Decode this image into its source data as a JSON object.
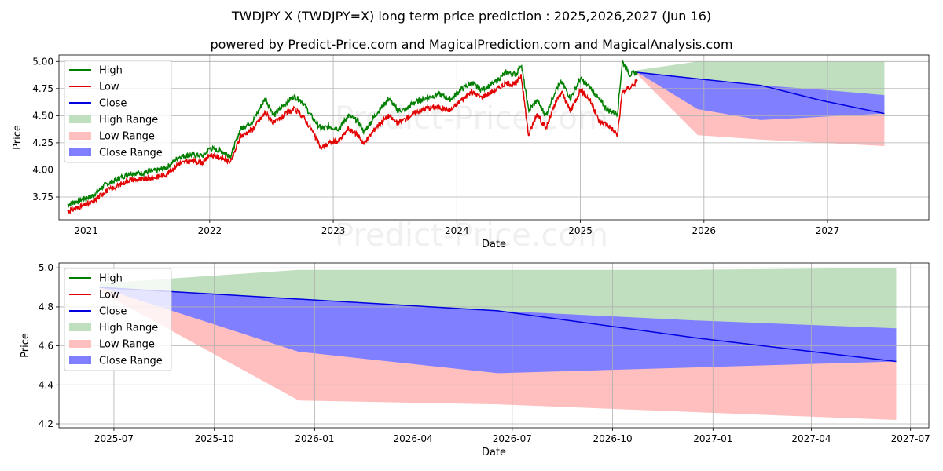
{
  "title": "TWDJPY X (TWDJPY=X) long term price prediction : 2025,2026,2027 (Jun 16)",
  "subtitle": "powered by Predict-Price.com and MagicalPrediction.com and MagicalAnalysis.com",
  "watermark": "Predict-Price.com",
  "colors": {
    "high": "#007f00",
    "low": "#e30000",
    "close": "#0000e0",
    "high_range": "#bfdfbf",
    "low_range": "#ffbfbf",
    "close_range": "#7f7fff"
  },
  "chart_data": [
    {
      "type": "line",
      "name": "long-term",
      "xlabel": "Date",
      "ylabel": "Price",
      "xlim": [
        2020.78,
        2027.82
      ],
      "ylim": [
        3.54,
        5.06
      ],
      "x_ticks": [
        2021,
        2022,
        2023,
        2024,
        2025,
        2026,
        2027
      ],
      "x_tick_labels": [
        "2021",
        "2022",
        "2023",
        "2024",
        "2025",
        "2026",
        "2027"
      ],
      "y_ticks": [
        3.75,
        4.0,
        4.25,
        4.5,
        4.75,
        5.0
      ],
      "y_tick_labels": [
        "3.75",
        "4.00",
        "4.25",
        "4.50",
        "4.75",
        "5.00"
      ],
      "legend": [
        "High",
        "Low",
        "Close",
        "High Range",
        "Low Range",
        "Close Range"
      ],
      "legend_position": "top-left",
      "grid": true,
      "history": {
        "x": [
          2020.85,
          2020.95,
          2021.05,
          2021.15,
          2021.25,
          2021.35,
          2021.45,
          2021.55,
          2021.65,
          2021.75,
          2021.85,
          2021.95,
          2022.0,
          2022.1,
          2022.17,
          2022.25,
          2022.35,
          2022.45,
          2022.52,
          2022.6,
          2022.68,
          2022.75,
          2022.82,
          2022.9,
          2022.97,
          2023.05,
          2023.12,
          2023.2,
          2023.25,
          2023.35,
          2023.45,
          2023.52,
          2023.58,
          2023.65,
          2023.75,
          2023.85,
          2023.95,
          2024.03,
          2024.12,
          2024.2,
          2024.3,
          2024.4,
          2024.48,
          2024.52,
          2024.58,
          2024.65,
          2024.72,
          2024.8,
          2024.85,
          2024.92,
          2025.0,
          2025.08,
          2025.15,
          2025.22,
          2025.3,
          2025.34,
          2025.4,
          2025.46
        ],
        "high": [
          3.68,
          3.72,
          3.76,
          3.86,
          3.91,
          3.97,
          3.97,
          3.99,
          4.02,
          4.12,
          4.14,
          4.13,
          4.2,
          4.17,
          4.13,
          4.38,
          4.45,
          4.66,
          4.5,
          4.6,
          4.68,
          4.63,
          4.5,
          4.38,
          4.4,
          4.38,
          4.5,
          4.45,
          4.35,
          4.52,
          4.66,
          4.55,
          4.55,
          4.62,
          4.66,
          4.7,
          4.65,
          4.74,
          4.8,
          4.74,
          4.8,
          4.9,
          4.88,
          4.98,
          4.55,
          4.64,
          4.5,
          4.74,
          4.81,
          4.66,
          4.84,
          4.76,
          4.65,
          4.55,
          4.52,
          5.0,
          4.88,
          4.9
        ],
        "low": [
          3.62,
          3.66,
          3.7,
          3.8,
          3.85,
          3.91,
          3.91,
          3.93,
          3.96,
          4.06,
          4.08,
          4.07,
          4.14,
          4.11,
          4.07,
          4.31,
          4.38,
          4.53,
          4.43,
          4.5,
          4.56,
          4.5,
          4.38,
          4.2,
          4.25,
          4.27,
          4.38,
          4.32,
          4.24,
          4.4,
          4.5,
          4.43,
          4.47,
          4.52,
          4.57,
          4.58,
          4.55,
          4.64,
          4.72,
          4.67,
          4.73,
          4.8,
          4.79,
          4.88,
          4.32,
          4.52,
          4.38,
          4.62,
          4.72,
          4.54,
          4.74,
          4.64,
          4.45,
          4.42,
          4.32,
          4.72,
          4.76,
          4.82
        ]
      },
      "forecast": {
        "x": [
          2025.46,
          2025.95,
          2026.46,
          2026.95,
          2027.46
        ],
        "close": [
          4.9,
          4.84,
          4.78,
          4.64,
          4.52
        ],
        "high_range_upper": [
          4.92,
          5.0,
          5.0,
          5.0,
          5.0
        ],
        "low_range_lower": [
          4.88,
          4.32,
          4.28,
          4.25,
          4.22
        ],
        "close_range_upper": [
          4.9,
          4.84,
          4.78,
          4.74,
          4.69
        ],
        "close_range_lower": [
          4.9,
          4.56,
          4.46,
          4.49,
          4.52
        ]
      }
    },
    {
      "type": "line",
      "name": "forecast-zoom",
      "xlabel": "Date",
      "ylabel": "Price",
      "xlim": [
        2025.358,
        2027.542
      ],
      "ylim": [
        4.18,
        5.025
      ],
      "x_ticks": [
        2025.496,
        2025.748,
        2026.0,
        2026.247,
        2026.496,
        2026.748,
        2027.0,
        2027.247,
        2027.496
      ],
      "x_tick_labels": [
        "2025-07",
        "2025-10",
        "2026-01",
        "2026-04",
        "2026-07",
        "2026-10",
        "2027-01",
        "2027-04",
        "2027-07"
      ],
      "y_ticks": [
        4.2,
        4.4,
        4.6,
        4.8,
        5.0
      ],
      "y_tick_labels": [
        "4.2",
        "4.4",
        "4.6",
        "4.8",
        "5.0"
      ],
      "legend": [
        "High",
        "Low",
        "Close",
        "High Range",
        "Low Range",
        "Close Range"
      ],
      "legend_position": "top-left",
      "grid": true,
      "forecast": {
        "x": [
          2025.46,
          2025.96,
          2026.46,
          2026.96,
          2027.46
        ],
        "close": [
          4.9,
          4.84,
          4.78,
          4.64,
          4.52
        ],
        "high_range_upper": [
          4.92,
          4.99,
          4.99,
          4.99,
          5.0
        ],
        "low_range_lower": [
          4.88,
          4.32,
          4.3,
          4.26,
          4.22
        ],
        "close_range_upper": [
          4.9,
          4.84,
          4.78,
          4.73,
          4.69
        ],
        "close_range_lower": [
          4.9,
          4.57,
          4.46,
          4.49,
          4.52
        ]
      }
    }
  ]
}
